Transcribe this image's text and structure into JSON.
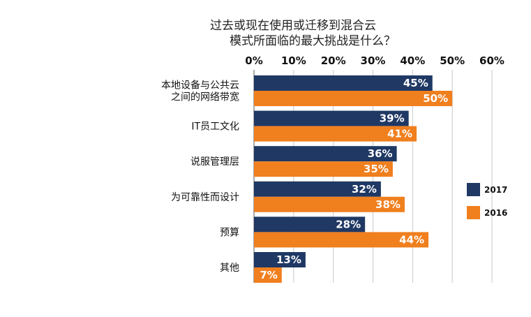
{
  "chart_data": {
    "type": "bar",
    "orientation": "horizontal",
    "title_lines": [
      "过去或现在使用或迁移到混合云",
      "模式所面临的最大挑战是什么？"
    ],
    "xlim": [
      0,
      60
    ],
    "x_ticks": [
      0,
      10,
      20,
      30,
      40,
      50,
      60
    ],
    "x_tick_labels": [
      "0%",
      "10%",
      "20%",
      "30%",
      "40%",
      "50%",
      "60%"
    ],
    "x_axis_position": "top",
    "grid": true,
    "legend_position": "right",
    "categories": [
      [
        "本地设备与公共云",
        "之间的网络带宽"
      ],
      [
        "IT员工文化"
      ],
      [
        "说服管理层"
      ],
      [
        "为可靠性而设计"
      ],
      [
        "预算"
      ],
      [
        "其他"
      ]
    ],
    "series": [
      {
        "name": "2017",
        "color": "#1f3864",
        "values": [
          45,
          39,
          36,
          32,
          28,
          13
        ],
        "labels": [
          "45%",
          "39%",
          "36%",
          "32%",
          "28%",
          "13%"
        ]
      },
      {
        "name": "2016",
        "color": "#f07f1e",
        "values": [
          50,
          41,
          35,
          38,
          44,
          7
        ],
        "labels": [
          "50%",
          "41%",
          "35%",
          "38%",
          "44%",
          "7%"
        ]
      }
    ]
  }
}
